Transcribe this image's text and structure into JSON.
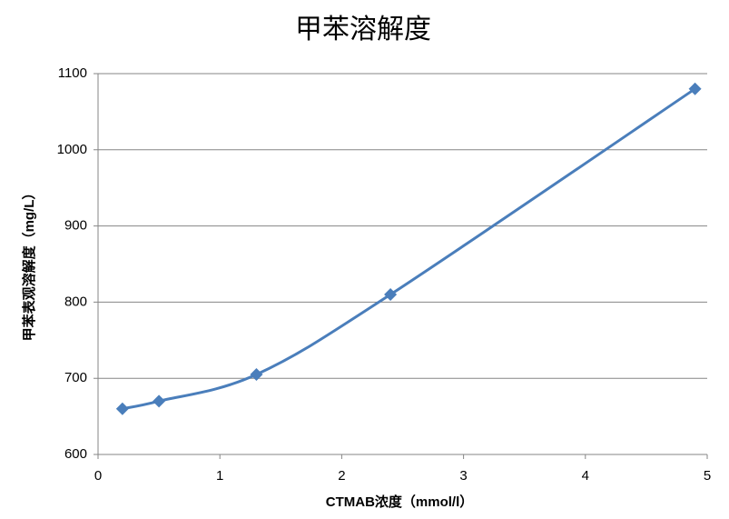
{
  "chart_data": {
    "type": "line",
    "title": "甲苯溶解度",
    "x_label": "CTMAB浓度（mmol/l）",
    "y_label": "甲苯表观溶解度（mg/L）",
    "x": [
      0.2,
      0.5,
      1.3,
      2.4,
      4.9
    ],
    "series": [
      {
        "color": "#4a7ebb",
        "values": [
          660,
          670,
          705,
          810,
          1080
        ]
      }
    ],
    "xlim": [
      0,
      5
    ],
    "xticks": [
      0,
      1,
      2,
      3,
      4,
      5
    ],
    "ylim": [
      600,
      1100
    ],
    "yticks": [
      600,
      700,
      800,
      900,
      1000,
      1100
    ],
    "grid": true,
    "smooth": true
  }
}
